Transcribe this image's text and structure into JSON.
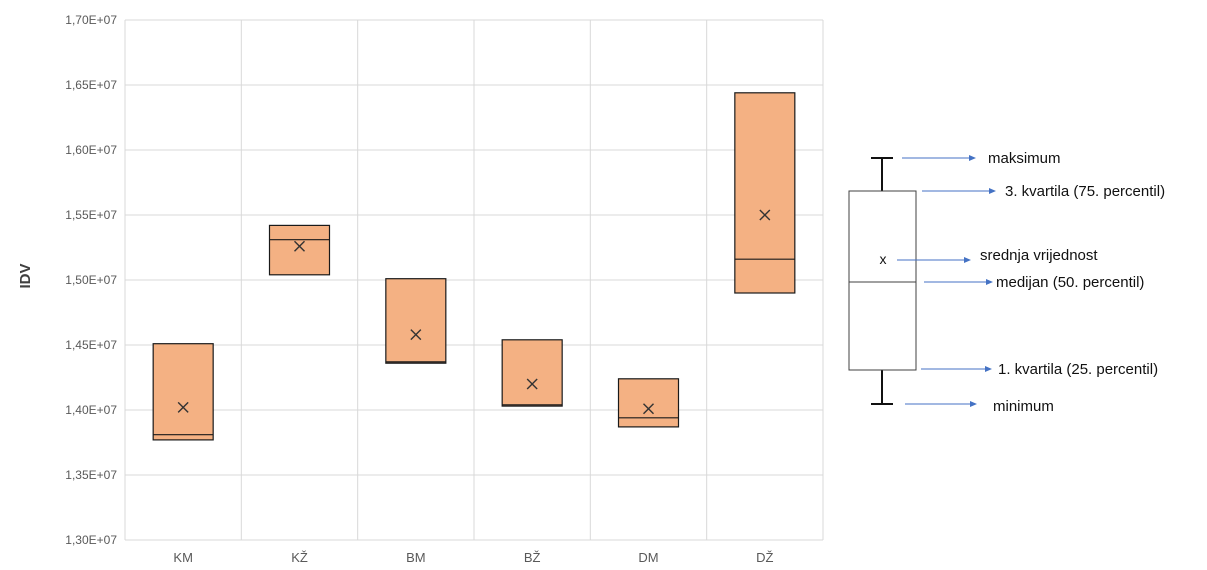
{
  "chart_data": {
    "type": "box",
    "ylabel": "IDV",
    "ylim": [
      13000000,
      17000000
    ],
    "y_ticks": [
      "1,30E+07",
      "1,35E+07",
      "1,40E+07",
      "1,45E+07",
      "1,50E+07",
      "1,55E+07",
      "1,60E+07",
      "1,65E+07",
      "1,70E+07"
    ],
    "y_tick_values": [
      13000000,
      13500000,
      14000000,
      14500000,
      15000000,
      15500000,
      16000000,
      16500000,
      17000000
    ],
    "categories": [
      "KM",
      "KŽ",
      "BM",
      "BŽ",
      "DM",
      "DŽ"
    ],
    "boxes": [
      {
        "q1": 13770000,
        "median": 13810000,
        "q3": 14510000,
        "mean": 14020000
      },
      {
        "q1": 15040000,
        "median": 15310000,
        "q3": 15420000,
        "mean": 15260000
      },
      {
        "q1": 14360000,
        "median": 14370000,
        "q3": 15010000,
        "mean": 14580000
      },
      {
        "q1": 14030000,
        "median": 14040000,
        "q3": 14540000,
        "mean": 14200000
      },
      {
        "q1": 13870000,
        "median": 13940000,
        "q3": 14240000,
        "mean": 14010000
      },
      {
        "q1": 14900000,
        "median": 15160000,
        "q3": 16440000,
        "mean": 15500000
      }
    ],
    "box_fill": "#F4B183",
    "box_stroke": "#1a1a1a",
    "grid": true,
    "grid_color": "#d9d9d9"
  },
  "legend": {
    "mean_marker": "x",
    "labels": {
      "max": "maksimum",
      "q3": "3. kvartila (75. percentil)",
      "mean": "srednja vrijednost",
      "median": "medijan (50. percentil)",
      "q1": "1. kvartila (25. percentil)",
      "min": "minimum"
    },
    "arrow_color": "#4472C4"
  }
}
